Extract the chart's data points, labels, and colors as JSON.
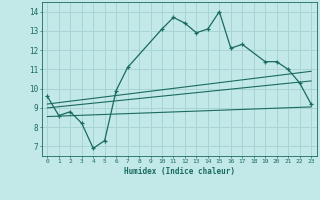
{
  "title": "",
  "xlabel": "Humidex (Indice chaleur)",
  "ylabel": "",
  "background_color": "#c2e8e8",
  "grid_color": "#a8d4d4",
  "line_color": "#1a6b60",
  "xlim": [
    -0.5,
    23.5
  ],
  "ylim": [
    6.5,
    14.5
  ],
  "xticks": [
    0,
    1,
    2,
    3,
    4,
    5,
    6,
    7,
    8,
    9,
    10,
    11,
    12,
    13,
    14,
    15,
    16,
    17,
    18,
    19,
    20,
    21,
    22,
    23
  ],
  "yticks": [
    7,
    8,
    9,
    10,
    11,
    12,
    13,
    14
  ],
  "main_x": [
    0,
    1,
    2,
    3,
    4,
    5,
    6,
    7,
    10,
    11,
    12,
    13,
    14,
    15,
    16,
    17,
    19,
    20,
    21,
    22,
    23
  ],
  "main_y": [
    9.6,
    8.6,
    8.8,
    8.2,
    6.9,
    7.3,
    9.9,
    11.1,
    13.1,
    13.7,
    13.4,
    12.9,
    13.1,
    14.0,
    12.1,
    12.3,
    11.4,
    11.4,
    11.0,
    10.3,
    9.2
  ],
  "line1_x": [
    0,
    23
  ],
  "line1_y": [
    8.55,
    9.05
  ],
  "line2_x": [
    0,
    23
  ],
  "line2_y": [
    9.0,
    10.4
  ],
  "line3_x": [
    0,
    23
  ],
  "line3_y": [
    9.2,
    10.9
  ]
}
